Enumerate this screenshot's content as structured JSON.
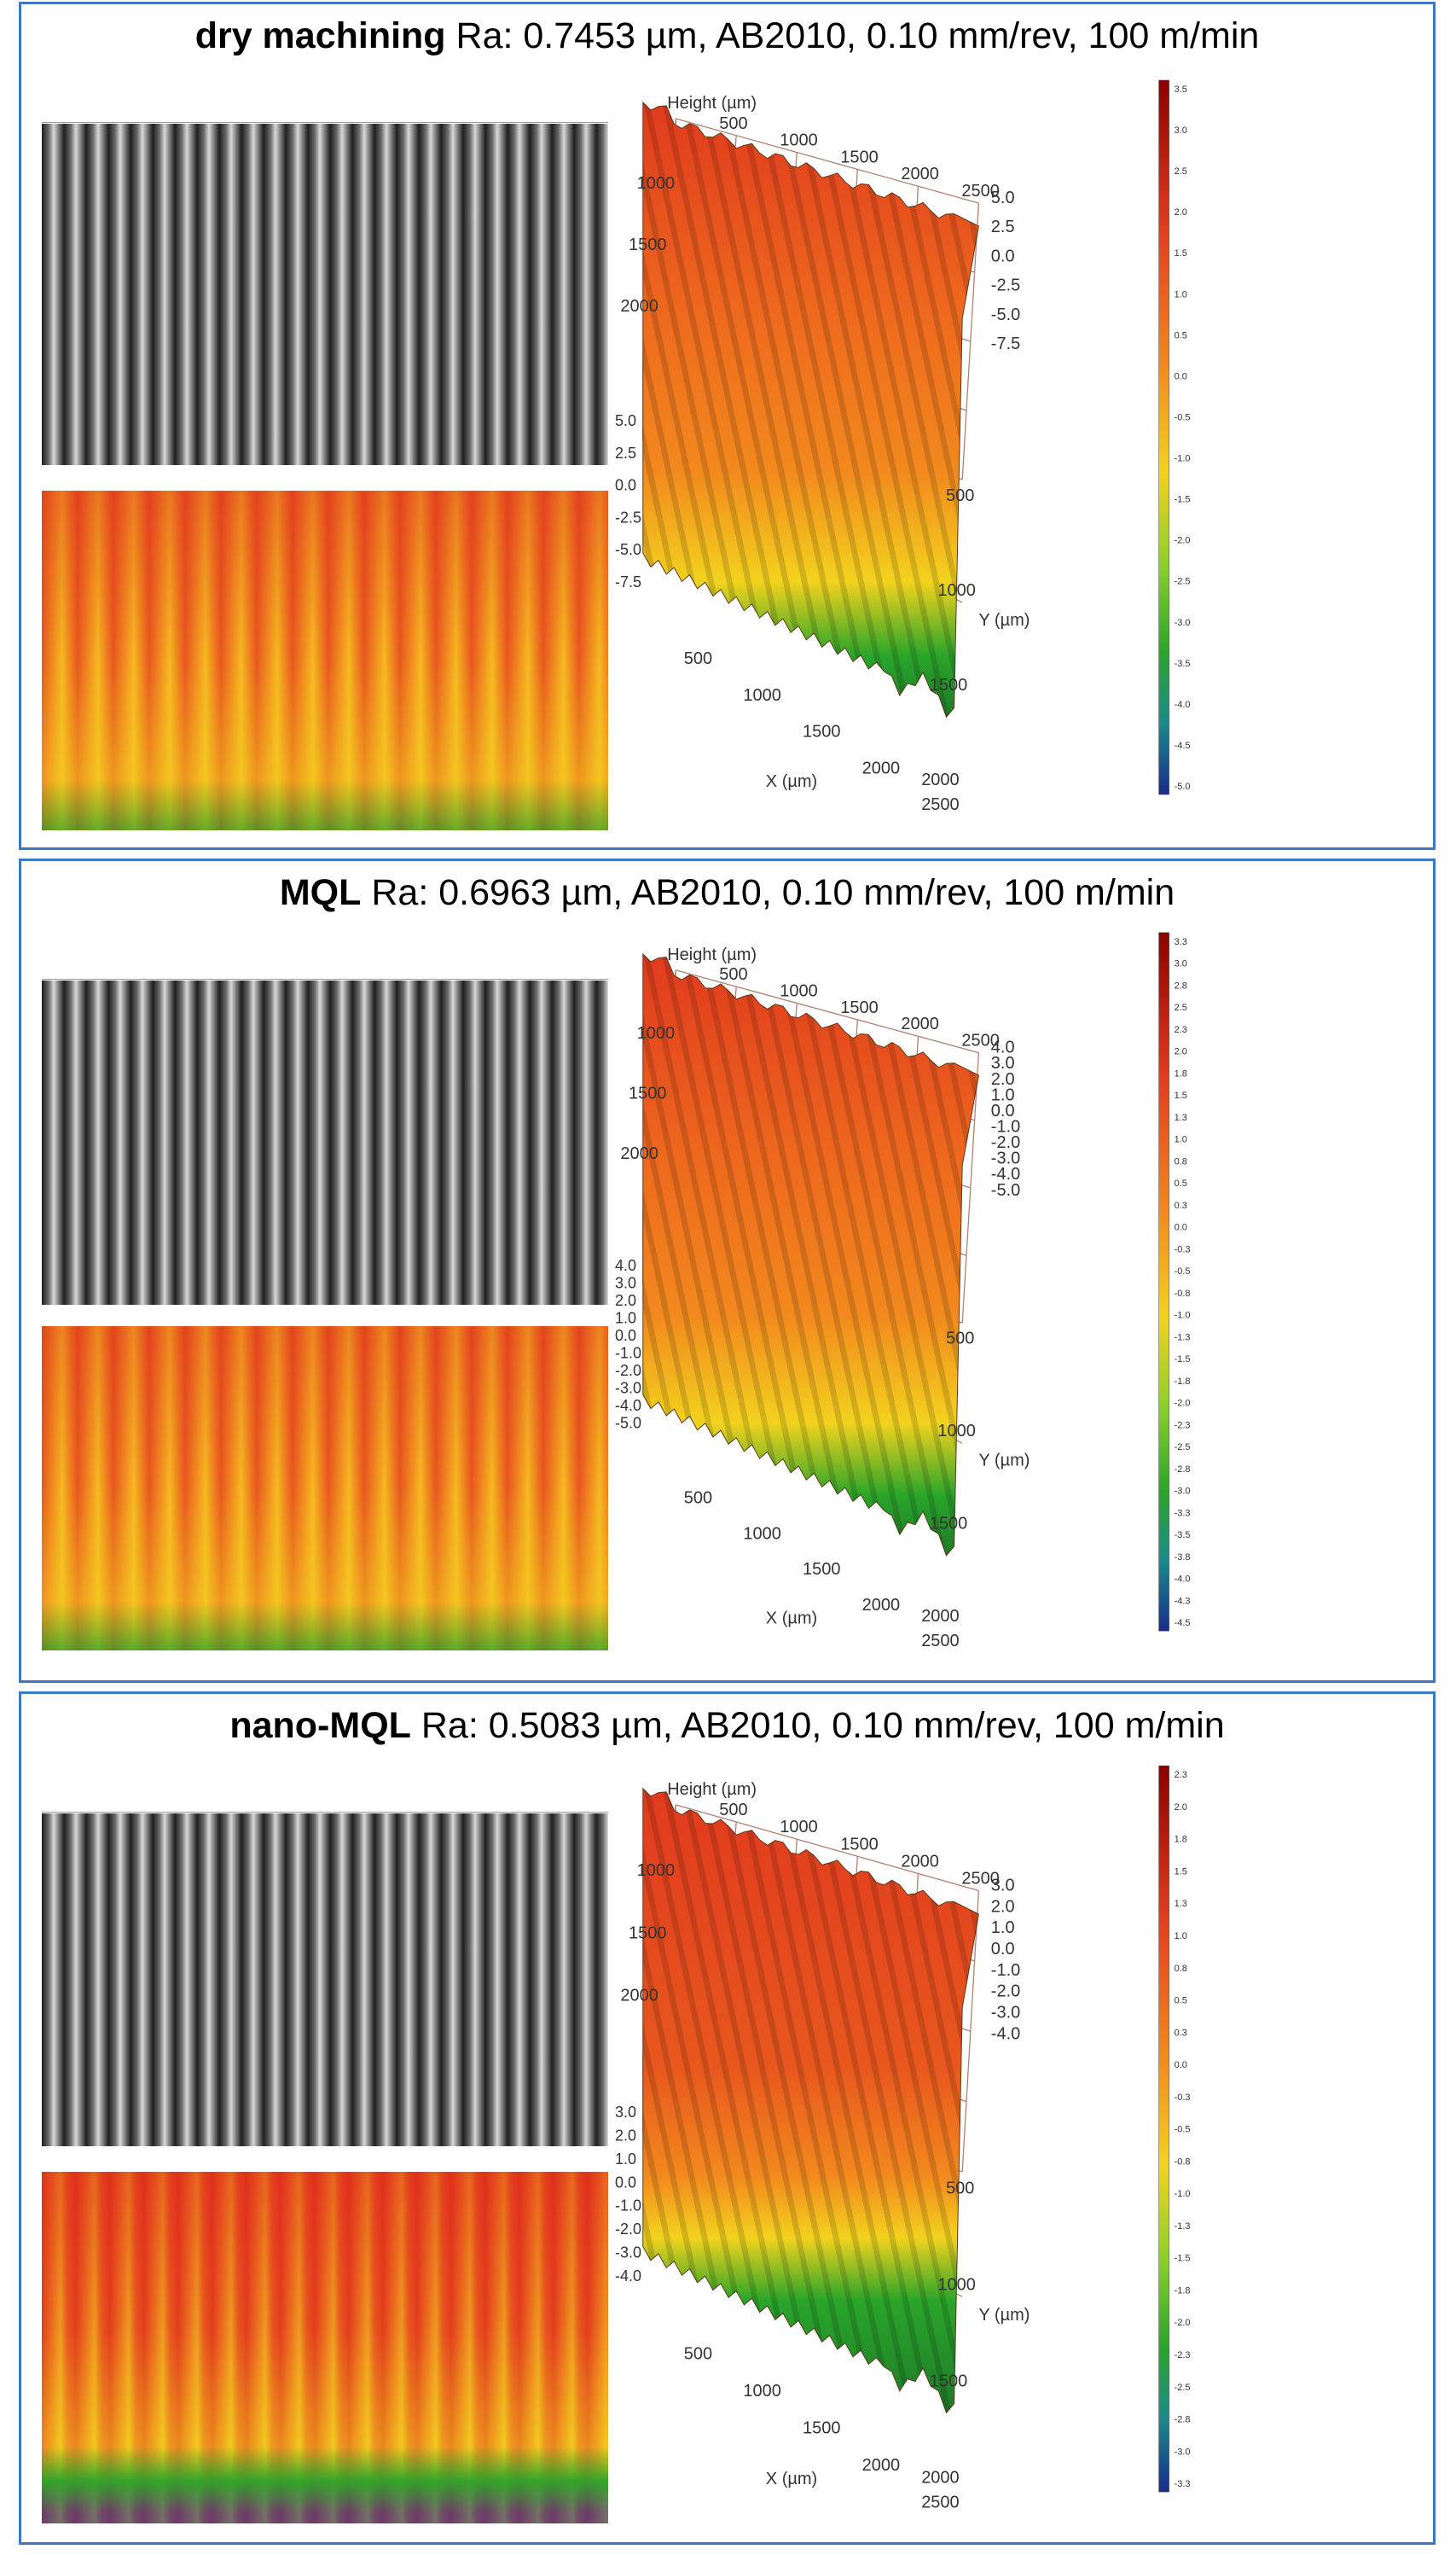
{
  "panels": [
    {
      "title_bold": "dry machining",
      "title_rest": " Ra: 0.7453 µm, AB2010, 0.10 mm/rev, 100 m/min",
      "z_axis_label": "Height (µm)",
      "x_axis_label": "X (µm)",
      "y_axis_label": "Y (µm)",
      "x_ticks": [
        "500",
        "1000",
        "1500",
        "2000",
        "2500"
      ],
      "y_ticks": [
        "500",
        "1000",
        "1500",
        "2000"
      ],
      "top_ticks": [
        "500",
        "1000",
        "1500",
        "2000",
        "2500"
      ],
      "left_ticks": [
        "1000",
        "1500",
        "2000"
      ],
      "z_ticks_right": [
        "5.0",
        "2.5",
        "0.0",
        "-2.5",
        "-5.0",
        "-7.5"
      ],
      "z_ticks_left": [
        "5.0",
        "2.5",
        "0.0",
        "-2.5",
        "-5.0",
        "-7.5"
      ],
      "colorbar_ticks": [
        "3.5",
        "3.0",
        "2.5",
        "2.0",
        "1.5",
        "1.0",
        "0.5",
        "0.0",
        "-0.5",
        "-1.0",
        "-1.5",
        "-2.0",
        "-2.5",
        "-3.0",
        "-3.5",
        "-4.0",
        "-4.5",
        "-5.0"
      ]
    },
    {
      "title_bold": "MQL",
      "title_rest": " Ra: 0.6963 µm, AB2010, 0.10 mm/rev, 100 m/min",
      "z_axis_label": "Height (µm)",
      "x_axis_label": "X (µm)",
      "y_axis_label": "Y (µm)",
      "x_ticks": [
        "500",
        "1000",
        "1500",
        "2000",
        "2500"
      ],
      "y_ticks": [
        "500",
        "1000",
        "1500",
        "2000"
      ],
      "top_ticks": [
        "500",
        "1000",
        "1500",
        "2000",
        "2500"
      ],
      "left_ticks": [
        "1000",
        "1500",
        "2000"
      ],
      "z_ticks_right": [
        "4.0",
        "3.0",
        "2.0",
        "1.0",
        "0.0",
        "-1.0",
        "-2.0",
        "-3.0",
        "-4.0",
        "-5.0"
      ],
      "z_ticks_left": [
        "4.0",
        "3.0",
        "2.0",
        "1.0",
        "0.0",
        "-1.0",
        "-2.0",
        "-3.0",
        "-4.0",
        "-5.0"
      ],
      "colorbar_ticks": [
        "3.3",
        "3.0",
        "2.8",
        "2.5",
        "2.3",
        "2.0",
        "1.8",
        "1.5",
        "1.3",
        "1.0",
        "0.8",
        "0.5",
        "0.3",
        "0.0",
        "-0.3",
        "-0.5",
        "-0.8",
        "-1.0",
        "-1.3",
        "-1.5",
        "-1.8",
        "-2.0",
        "-2.3",
        "-2.5",
        "-2.8",
        "-3.0",
        "-3.3",
        "-3.5",
        "-3.8",
        "-4.0",
        "-4.3",
        "-4.5"
      ]
    },
    {
      "title_bold": "nano-MQL",
      "title_rest": " Ra: 0.5083 µm, AB2010, 0.10 mm/rev, 100 m/min",
      "z_axis_label": "Height (µm)",
      "x_axis_label": "X (µm)",
      "y_axis_label": "Y (µm)",
      "x_ticks": [
        "500",
        "1000",
        "1500",
        "2000",
        "2500"
      ],
      "y_ticks": [
        "500",
        "1000",
        "1500",
        "2000"
      ],
      "top_ticks": [
        "500",
        "1000",
        "1500",
        "2000",
        "2500"
      ],
      "left_ticks": [
        "1000",
        "1500",
        "2000"
      ],
      "z_ticks_right": [
        "3.0",
        "2.0",
        "1.0",
        "0.0",
        "-1.0",
        "-2.0",
        "-3.0",
        "-4.0"
      ],
      "z_ticks_left": [
        "3.0",
        "2.0",
        "1.0",
        "0.0",
        "-1.0",
        "-2.0",
        "-3.0",
        "-4.0"
      ],
      "colorbar_ticks": [
        "2.3",
        "2.0",
        "1.8",
        "1.5",
        "1.3",
        "1.0",
        "0.8",
        "0.5",
        "0.3",
        "0.0",
        "-0.3",
        "-0.5",
        "-0.8",
        "-1.0",
        "-1.3",
        "-1.5",
        "-1.8",
        "-2.0",
        "-2.3",
        "-2.5",
        "-2.8",
        "-3.0",
        "-3.3"
      ]
    }
  ],
  "colors": {
    "border": "#3f77c0",
    "red": "#e03a1e",
    "orange": "#f2891e",
    "yellow": "#f2d21e",
    "green": "#2aa52a",
    "blue": "#1a2b8c"
  }
}
